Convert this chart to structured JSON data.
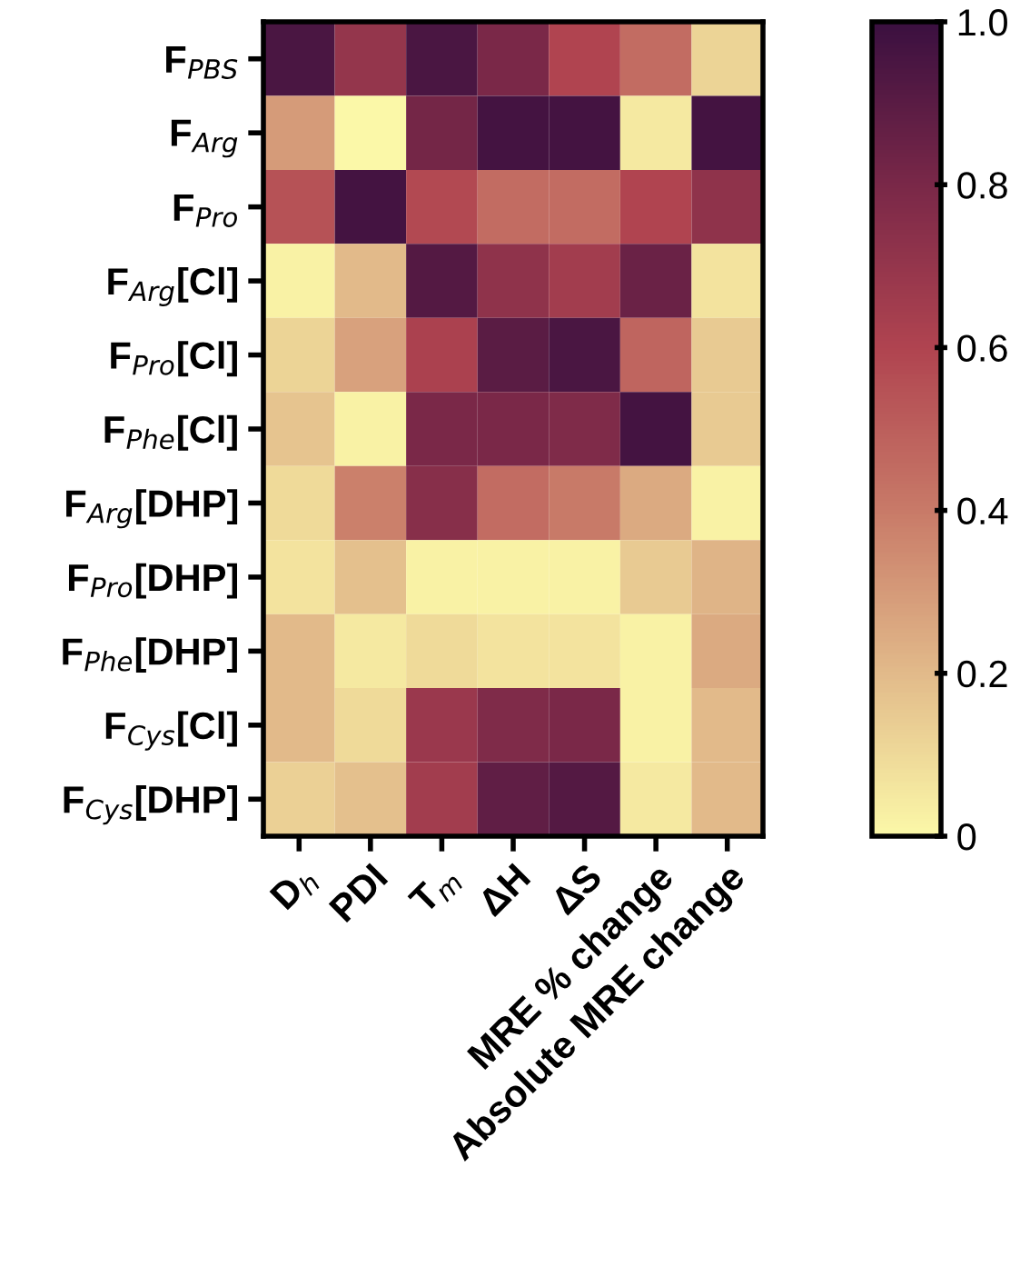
{
  "chart_data": {
    "type": "heatmap",
    "categories": [
      "D$_{h}$",
      "PDI",
      "T$_{m}$",
      "ΔH",
      "ΔS",
      "MRE % change",
      "Absolute MRE change"
    ],
    "y_categories": [
      "F$_{PBS}$",
      "F$_{Arg}$",
      "F$_{Pro}$",
      "F$_{Arg}$[Cl]",
      "F$_{Pro}$[Cl]",
      "F$_{Phe}$[Cl]",
      "F$_{Arg}$[DHP]",
      "F$_{Pro}$[DHP]",
      "F$_{Phe}$[DHP]",
      "F$_{Cys}$[Cl]",
      "F$_{Cys}$[DHP]"
    ],
    "cells": [
      [
        0.95,
        0.7,
        0.95,
        0.8,
        0.6,
        0.45,
        0.12
      ],
      [
        0.3,
        0.0,
        0.82,
        0.97,
        0.97,
        0.05,
        0.97
      ],
      [
        0.55,
        0.97,
        0.58,
        0.45,
        0.45,
        0.6,
        0.72
      ],
      [
        0.02,
        0.2,
        0.92,
        0.72,
        0.65,
        0.85,
        0.07
      ],
      [
        0.12,
        0.28,
        0.62,
        0.9,
        0.95,
        0.48,
        0.15
      ],
      [
        0.17,
        0.02,
        0.8,
        0.8,
        0.78,
        0.97,
        0.15
      ],
      [
        0.1,
        0.38,
        0.75,
        0.45,
        0.4,
        0.25,
        0.02
      ],
      [
        0.07,
        0.18,
        0.02,
        0.02,
        0.02,
        0.15,
        0.22
      ],
      [
        0.2,
        0.05,
        0.1,
        0.07,
        0.07,
        0.02,
        0.25
      ],
      [
        0.2,
        0.1,
        0.68,
        0.78,
        0.8,
        0.02,
        0.2
      ],
      [
        0.13,
        0.18,
        0.65,
        0.88,
        0.92,
        0.05,
        0.2
      ]
    ],
    "clim": [
      0,
      1
    ],
    "cticks": [
      0,
      {
        "value": 0.2,
        "label": "0.2"
      },
      {
        "value": 0.4,
        "label": "0.4"
      },
      {
        "value": 0.6,
        "label": "0.6"
      },
      {
        "value": 0.8,
        "label": "0.8"
      },
      {
        "value": 1,
        "label": "1.0"
      }
    ]
  }
}
